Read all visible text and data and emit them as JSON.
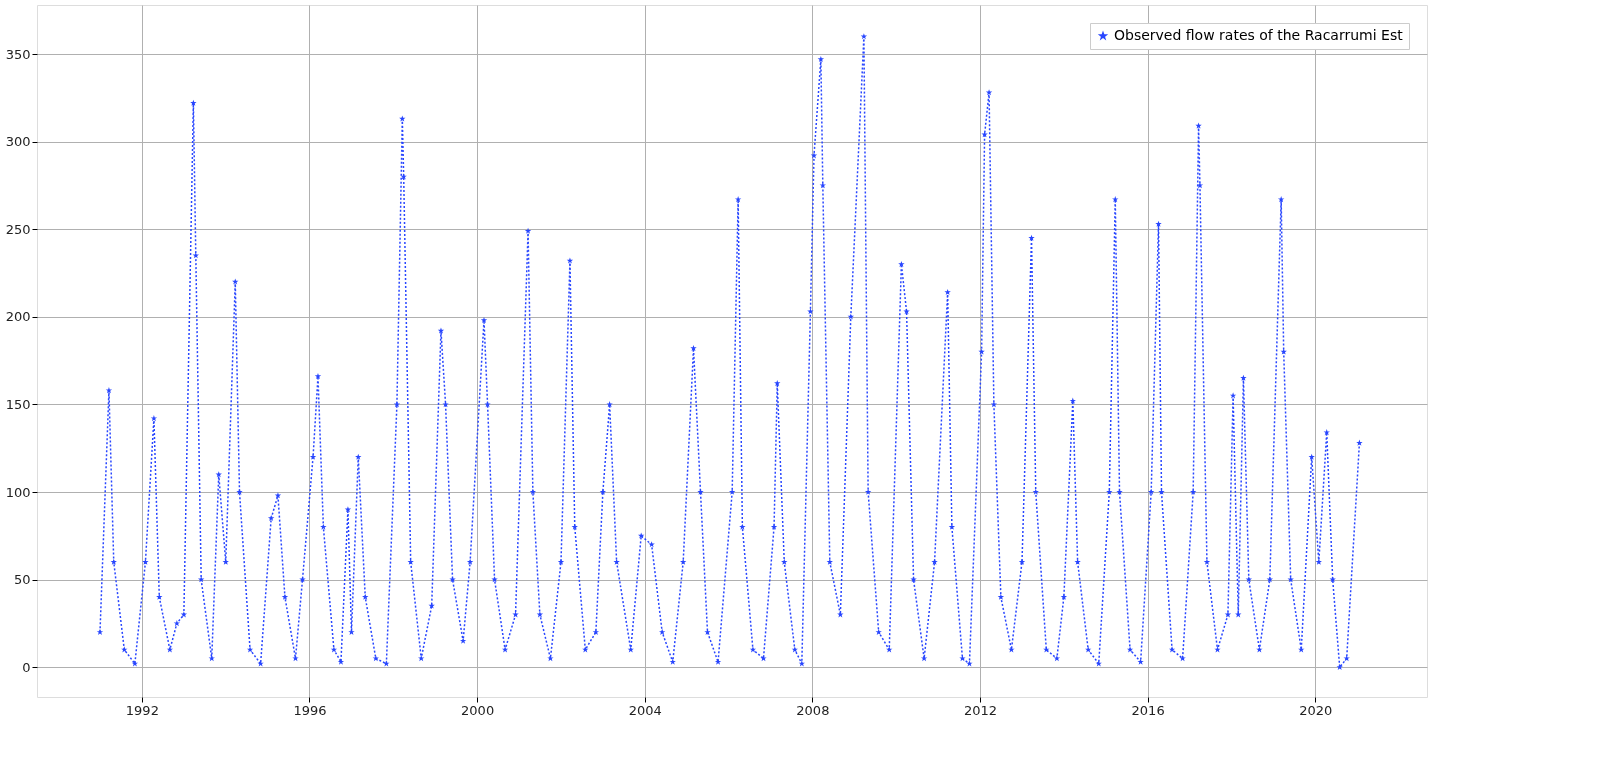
{
  "chart_data": {
    "type": "line",
    "x": [
      "1991-01",
      "1991-03-20",
      "1991-05",
      "1991-08",
      "1991-11",
      "1992-02",
      "1992-04-15",
      "1992-06",
      "1992-09",
      "1992-11",
      "1993-01",
      "1993-03-25",
      "1993-04-15",
      "1993-06",
      "1993-09",
      "1993-11",
      "1994-01",
      "1994-03-25",
      "1994-05",
      "1994-08",
      "1994-11",
      "1995-02",
      "1995-04",
      "1995-06",
      "1995-09",
      "1995-11",
      "1996-02",
      "1996-03-15",
      "1996-05",
      "1996-08",
      "1996-10",
      "1996-12",
      "1997-01",
      "1997-03",
      "1997-05",
      "1997-08",
      "1997-11",
      "1998-02",
      "1998-03-20",
      "1998-04",
      "1998-06",
      "1998-09",
      "1998-12",
      "1999-02-20",
      "1999-04",
      "1999-06",
      "1999-09",
      "1999-11",
      "2000-03",
      "2000-04",
      "2000-06",
      "2000-09",
      "2000-12",
      "2001-03-20",
      "2001-05",
      "2001-07",
      "2001-10",
      "2002-01",
      "2002-03-20",
      "2002-05",
      "2002-08",
      "2002-11",
      "2003-01",
      "2003-03",
      "2003-05",
      "2003-09",
      "2003-12",
      "2004-03",
      "2004-06",
      "2004-09",
      "2004-12",
      "2005-03",
      "2005-05",
      "2005-07",
      "2005-10",
      "2006-02",
      "2006-03-25",
      "2006-05",
      "2006-08",
      "2006-11",
      "2007-02",
      "2007-03",
      "2007-05",
      "2007-08",
      "2007-10",
      "2007-12-15",
      "2008-01-15",
      "2008-03-15",
      "2008-04",
      "2008-06",
      "2008-09",
      "2008-12",
      "2009-03-25",
      "2009-05",
      "2009-08",
      "2009-11",
      "2010-02-15",
      "2010-04",
      "2010-06",
      "2010-09",
      "2010-12",
      "2011-03-25",
      "2011-05",
      "2011-08",
      "2011-10",
      "2012-01-15",
      "2012-02-10",
      "2012-03-20",
      "2012-05",
      "2012-07",
      "2012-10",
      "2013-01",
      "2013-03-25",
      "2013-05",
      "2013-08",
      "2013-11",
      "2014-01",
      "2014-03-20",
      "2014-05",
      "2014-08",
      "2014-11",
      "2015-02",
      "2015-03-25",
      "2015-05",
      "2015-08",
      "2015-11",
      "2016-02",
      "2016-04-05",
      "2016-05",
      "2016-08",
      "2016-11",
      "2017-02",
      "2017-03-20",
      "2017-04",
      "2017-06",
      "2017-09",
      "2017-12",
      "2018-01-15",
      "2018-03",
      "2018-04-15",
      "2018-06",
      "2018-09",
      "2018-12",
      "2019-03-10",
      "2019-04",
      "2019-06",
      "2019-09",
      "2019-12",
      "2020-02",
      "2020-04-10",
      "2020-06",
      "2020-08",
      "2020-10",
      "2021-01-20"
    ],
    "series": [
      {
        "name": "Observed flow rates of the Racarrumi Est",
        "color": "#2846ff",
        "values": [
          20,
          158,
          60,
          10,
          2,
          60,
          142,
          40,
          10,
          25,
          30,
          322,
          235,
          50,
          5,
          110,
          60,
          220,
          100,
          10,
          2,
          85,
          98,
          40,
          5,
          50,
          120,
          166,
          80,
          10,
          3,
          90,
          20,
          120,
          40,
          5,
          2,
          150,
          313,
          280,
          60,
          5,
          35,
          192,
          150,
          50,
          15,
          60,
          198,
          150,
          50,
          10,
          30,
          249,
          100,
          30,
          5,
          60,
          232,
          80,
          10,
          20,
          100,
          150,
          60,
          10,
          75,
          70,
          20,
          3,
          60,
          182,
          100,
          20,
          3,
          100,
          267,
          80,
          10,
          5,
          80,
          162,
          60,
          10,
          2,
          203,
          292,
          347,
          275,
          60,
          30,
          200,
          360,
          100,
          20,
          10,
          230,
          203,
          50,
          5,
          60,
          214,
          80,
          5,
          2,
          180,
          304,
          328,
          150,
          40,
          10,
          60,
          245,
          100,
          10,
          5,
          40,
          152,
          60,
          10,
          2,
          100,
          267,
          100,
          10,
          3,
          100,
          253,
          100,
          10,
          5,
          100,
          309,
          275,
          60,
          10,
          30,
          155,
          30,
          165,
          50,
          10,
          50,
          267,
          180,
          50,
          10,
          120,
          60,
          134,
          50,
          0,
          5,
          128
        ]
      }
    ],
    "xlim": [
      "1989-07",
      "2022-09"
    ],
    "xticks": [
      {
        "value": "1992",
        "label": "1992"
      },
      {
        "value": "1996",
        "label": "1996"
      },
      {
        "value": "2000",
        "label": "2000"
      },
      {
        "value": "2004",
        "label": "2004"
      },
      {
        "value": "2008",
        "label": "2008"
      },
      {
        "value": "2012",
        "label": "2012"
      },
      {
        "value": "2016",
        "label": "2016"
      },
      {
        "value": "2020",
        "label": "2020"
      }
    ],
    "ylim": [
      -17,
      378
    ],
    "yticks": [
      0,
      50,
      100,
      150,
      200,
      250,
      300,
      350
    ],
    "grid": true,
    "legend": "top right",
    "marker": "star",
    "line_style": "dotted"
  }
}
